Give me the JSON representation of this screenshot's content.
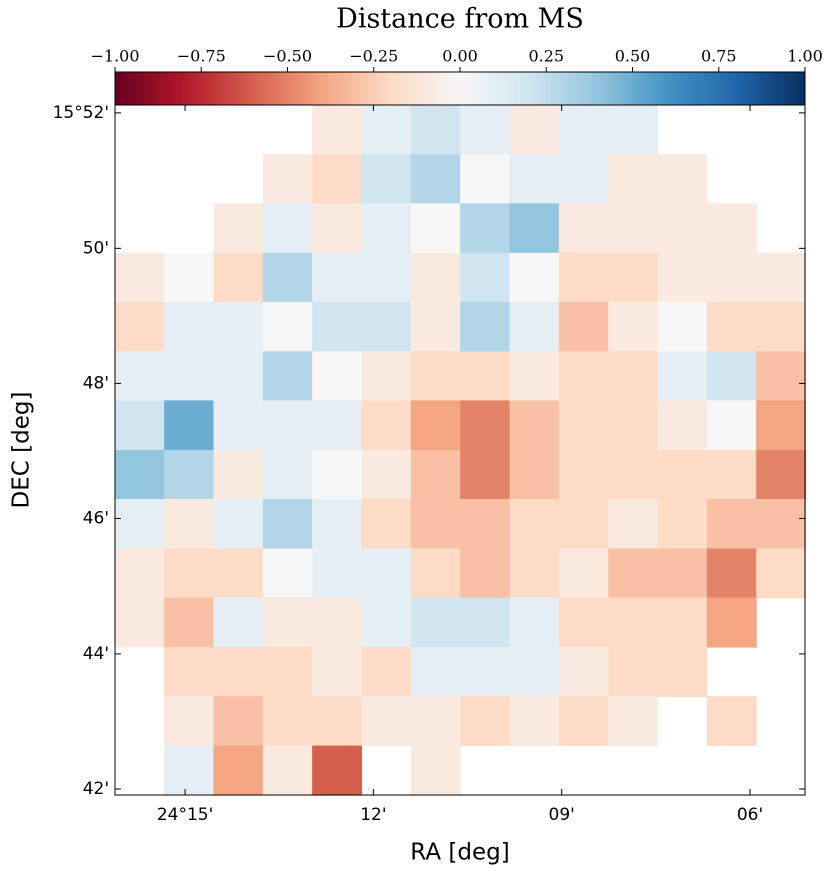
{
  "chart_data": {
    "type": "heatmap",
    "colorbar_label": "Distance from MS",
    "x_label": "RA [deg]",
    "y_label": "DEC [deg]",
    "colormap": [
      "#67001f",
      "#b2182b",
      "#d6604d",
      "#f4a582",
      "#fddbc7",
      "#f7f7f7",
      "#d1e5f0",
      "#92c5de",
      "#4393c3",
      "#2166ac",
      "#053061"
    ],
    "clim": [
      -1,
      1
    ],
    "cticks": [
      {
        "value": -1,
        "label": "−1.00"
      },
      {
        "value": -0.75,
        "label": "−0.75"
      },
      {
        "value": -0.5,
        "label": "−0.50"
      },
      {
        "value": -0.25,
        "label": "−0.25"
      },
      {
        "value": 0,
        "label": "0.00"
      },
      0.25,
      {
        "value": 0.5,
        "label": "0.50"
      },
      0.75,
      {
        "value": 1,
        "label": "1.00"
      }
    ],
    "xlim": [
      24.2686,
      24.0854
    ],
    "xticks": [
      {
        "value": 24.25,
        "label": "24°15'"
      },
      {
        "value": 24.2,
        "label": "12'"
      },
      {
        "value": 24.15,
        "label": "09'"
      },
      {
        "value": 24.1,
        "label": "06'"
      }
    ],
    "ylim": [
      15.69852,
      15.86864
    ],
    "yticks": [
      {
        "value": 15.8667,
        "label": "15°52'"
      },
      {
        "value": 15.8333,
        "label": "50'"
      },
      {
        "value": 15.8,
        "label": "48'"
      },
      {
        "value": 15.7667,
        "label": "46'"
      },
      {
        "value": 15.7333,
        "label": "44'"
      },
      {
        "value": 15.7,
        "label": "42'"
      }
    ],
    "x": [
      24.2621,
      24.249,
      24.2359,
      24.2228,
      24.2097,
      24.1966,
      24.1835,
      24.1704,
      24.1573,
      24.1442,
      24.1311,
      24.118,
      24.1049,
      24.0918
    ],
    "y": [
      15.8626,
      15.8504,
      15.8383,
      15.8261,
      15.814,
      15.8018,
      15.7897,
      15.7775,
      15.7654,
      15.7532,
      15.7411,
      15.7289,
      15.7168,
      15.7046
    ],
    "values": [
      [
        null,
        null,
        null,
        null,
        -0.1,
        0.1,
        0.2,
        0.1,
        -0.1,
        0.1,
        0.1,
        null,
        null,
        null
      ],
      [
        null,
        null,
        null,
        -0.1,
        -0.2,
        0.2,
        0.3,
        0,
        0.1,
        0.1,
        -0.1,
        -0.1,
        null,
        null
      ],
      [
        null,
        null,
        -0.1,
        0.1,
        -0.1,
        0.1,
        0,
        0.3,
        0.4,
        -0.1,
        -0.1,
        -0.1,
        -0.1,
        null
      ],
      [
        -0.1,
        0,
        -0.2,
        0.3,
        0.1,
        0.1,
        -0.1,
        0.2,
        0,
        -0.2,
        -0.2,
        -0.1,
        -0.1,
        -0.1
      ],
      [
        -0.2,
        0.1,
        0.1,
        0,
        0.2,
        0.2,
        -0.1,
        0.3,
        0.1,
        -0.3,
        -0.1,
        0,
        -0.2,
        -0.2
      ],
      [
        0.1,
        0.1,
        0.1,
        0.3,
        0,
        -0.1,
        -0.2,
        -0.2,
        -0.1,
        -0.2,
        -0.2,
        0.1,
        0.2,
        -0.3
      ],
      [
        0.2,
        0.5,
        0.1,
        0.1,
        0.1,
        -0.2,
        -0.4,
        -0.5,
        -0.3,
        -0.2,
        -0.2,
        -0.1,
        0,
        -0.4
      ],
      [
        0.4,
        0.3,
        -0.1,
        0.1,
        0,
        -0.1,
        -0.3,
        -0.5,
        -0.3,
        -0.2,
        -0.2,
        -0.2,
        -0.2,
        -0.5
      ],
      [
        0.1,
        -0.1,
        0.1,
        0.3,
        0.1,
        -0.2,
        -0.3,
        -0.3,
        -0.2,
        -0.2,
        -0.1,
        -0.2,
        -0.3,
        -0.3
      ],
      [
        -0.1,
        -0.2,
        -0.2,
        0,
        0.1,
        0.1,
        -0.2,
        -0.3,
        -0.2,
        -0.1,
        -0.3,
        -0.3,
        -0.5,
        -0.2
      ],
      [
        -0.1,
        -0.3,
        0.1,
        -0.1,
        -0.1,
        0.1,
        0.2,
        0.2,
        0.1,
        -0.2,
        -0.2,
        -0.2,
        -0.4,
        null
      ],
      [
        null,
        -0.2,
        -0.2,
        -0.2,
        -0.1,
        -0.2,
        0.1,
        0.1,
        0.1,
        -0.1,
        -0.2,
        -0.2,
        null,
        null
      ],
      [
        null,
        -0.1,
        -0.3,
        -0.2,
        -0.2,
        -0.1,
        -0.1,
        -0.2,
        -0.1,
        -0.2,
        -0.1,
        null,
        -0.2,
        null
      ],
      [
        null,
        0.1,
        -0.4,
        -0.1,
        -0.6,
        null,
        -0.1,
        null,
        null,
        null,
        null,
        null,
        null,
        null
      ]
    ]
  }
}
